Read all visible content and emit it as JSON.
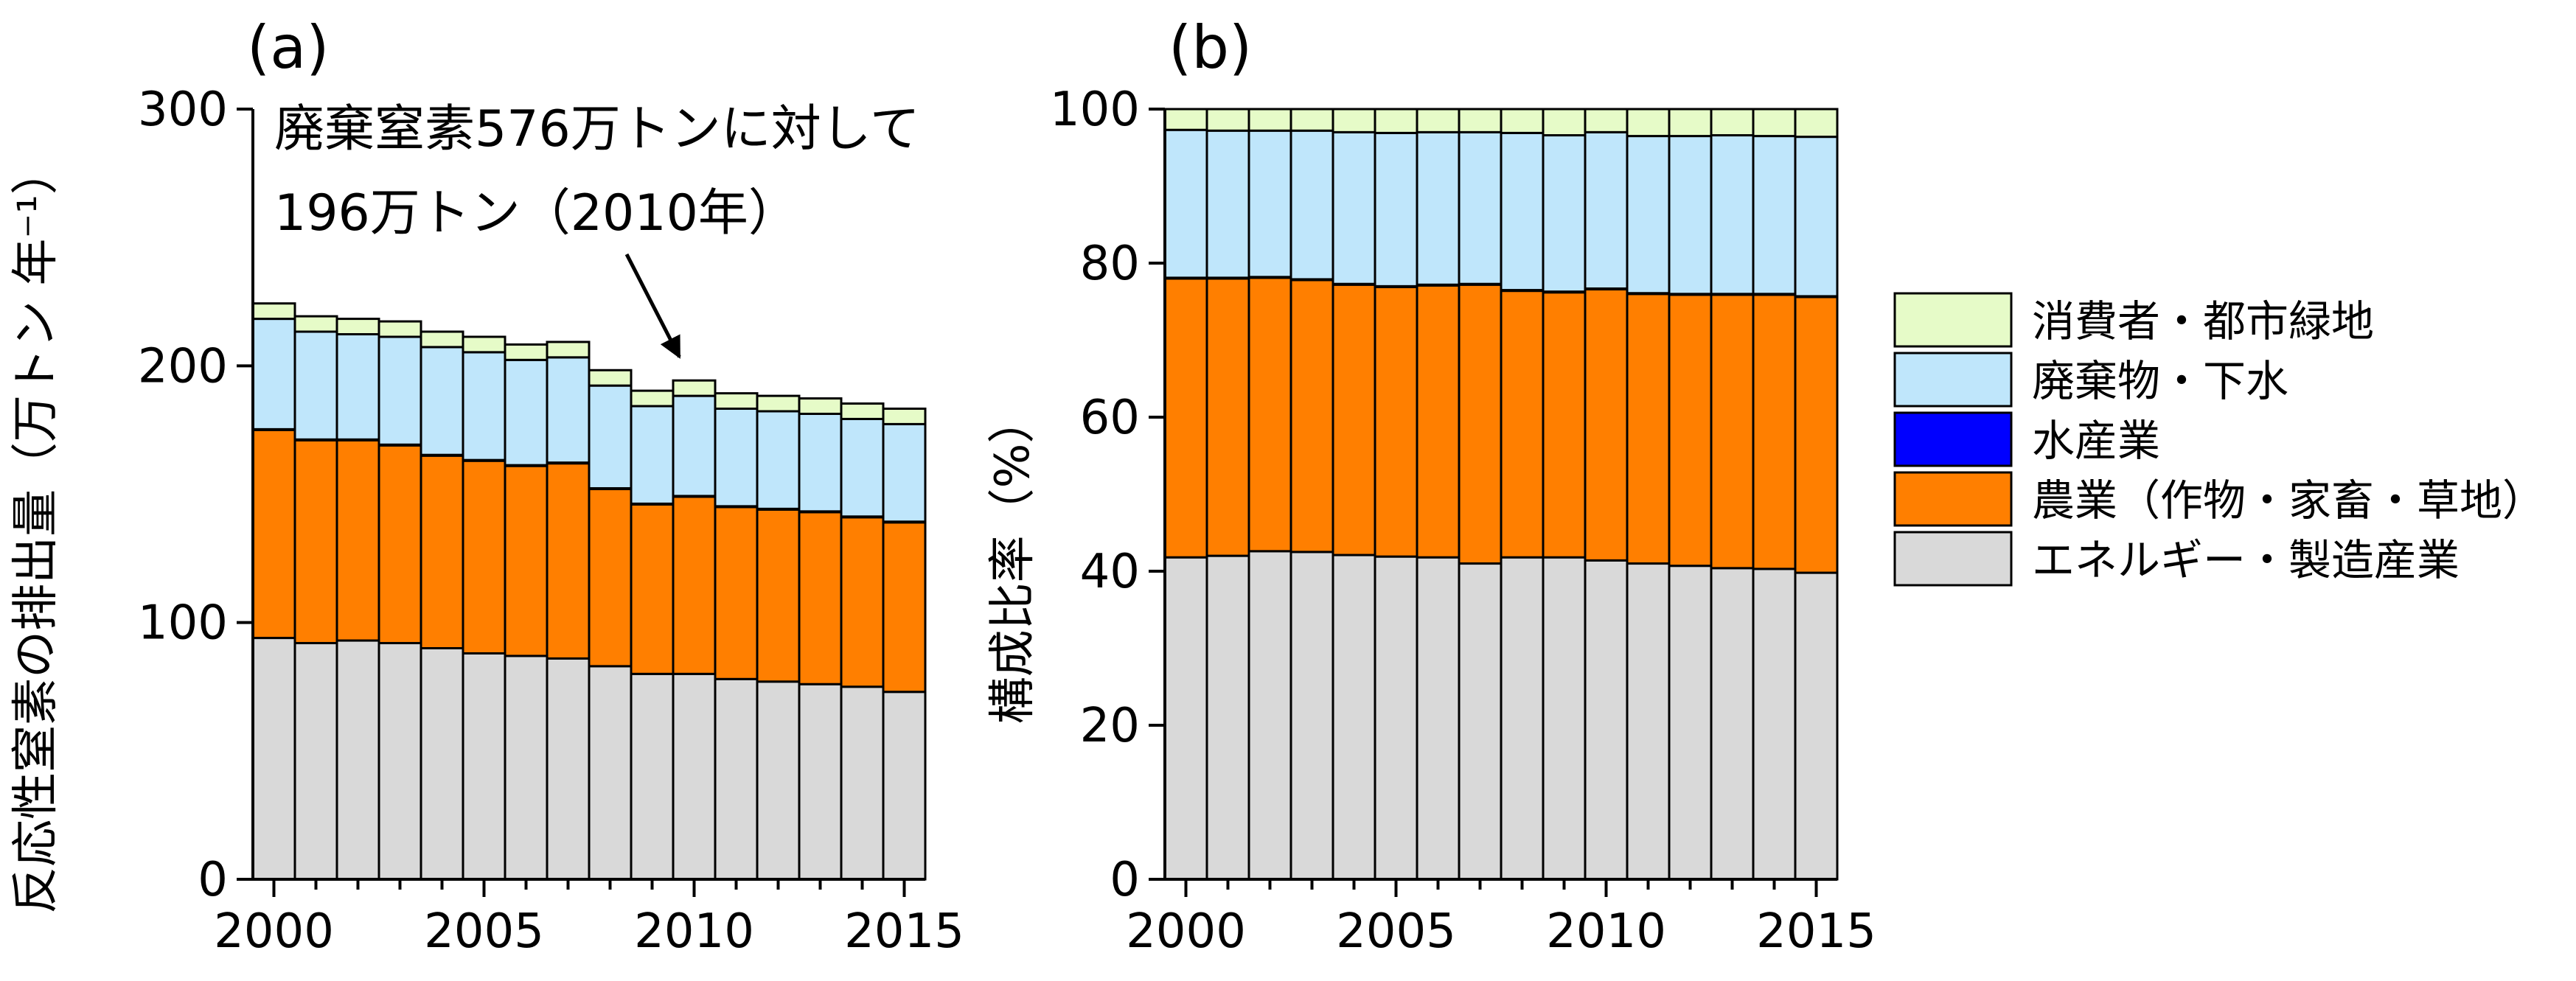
{
  "colors": {
    "consumer": "#e6fbc8",
    "waste": "#bfe6fb",
    "fishery": "#0000ff",
    "agriculture": "#ff7f00",
    "energy": "#d9d9d9",
    "edge": "#000000"
  },
  "chart_data": [
    {
      "type": "bar",
      "stacked": true,
      "panel_label": "(a)",
      "ylabel": "反応性窒素の排出量（万トン 年⁻¹）",
      "ylim": [
        0,
        300
      ],
      "yticks": [
        0,
        100,
        200,
        300
      ],
      "xticks": [
        "2000",
        "2005",
        "2010",
        "2015"
      ],
      "grid": false,
      "categories": [
        "2000",
        "2001",
        "2002",
        "2003",
        "2004",
        "2005",
        "2006",
        "2007",
        "2008",
        "2009",
        "2010",
        "2011",
        "2012",
        "2013",
        "2014",
        "2015"
      ],
      "series": [
        {
          "name": "エネルギー・製造産業",
          "color_key": "energy",
          "values": [
            94,
            92,
            93,
            92,
            90,
            88,
            87,
            86,
            83,
            80,
            80,
            78,
            77,
            76,
            75,
            73
          ]
        },
        {
          "name": "農業（作物・家畜・草地）",
          "color_key": "agriculture",
          "values": [
            81,
            79,
            78,
            77,
            75,
            75,
            74,
            76,
            69,
            66,
            69,
            67,
            67,
            67,
            66,
            66
          ]
        },
        {
          "name": "水産業",
          "color_key": "fishery",
          "values": [
            0.3,
            0.3,
            0.3,
            0.3,
            0.3,
            0.3,
            0.3,
            0.3,
            0.3,
            0.3,
            0.3,
            0.3,
            0.3,
            0.3,
            0.3,
            0.3
          ]
        },
        {
          "name": "廃棄物・下水",
          "color_key": "waste",
          "values": [
            43,
            42,
            41,
            42,
            42,
            42,
            41,
            41,
            40,
            38,
            39,
            38,
            38,
            38,
            38,
            38
          ]
        },
        {
          "name": "消費者・都市緑地",
          "color_key": "consumer",
          "values": [
            6,
            6,
            6,
            6,
            6,
            6,
            6,
            6,
            6,
            6,
            6,
            6,
            6,
            6,
            6,
            6
          ]
        }
      ],
      "annotation": {
        "lines": [
          "廃棄窒素576万トンに対して",
          "196万トン（2010年）"
        ],
        "arrow_target": {
          "x": "2010",
          "y": 196
        }
      }
    },
    {
      "type": "bar",
      "stacked": true,
      "panel_label": "(b)",
      "ylabel": "構成比率（%）",
      "ylim": [
        0,
        100
      ],
      "yticks": [
        0,
        20,
        40,
        60,
        80,
        100
      ],
      "xticks": [
        "2000",
        "2005",
        "2010",
        "2015"
      ],
      "grid": false,
      "categories": [
        "2000",
        "2001",
        "2002",
        "2003",
        "2004",
        "2005",
        "2006",
        "2007",
        "2008",
        "2009",
        "2010",
        "2011",
        "2012",
        "2013",
        "2014",
        "2015"
      ],
      "series": [
        {
          "name": "エネルギー・製造産業",
          "color_key": "energy",
          "values": [
            41.8,
            42.0,
            42.6,
            42.5,
            42.1,
            41.9,
            41.8,
            41.0,
            41.8,
            41.8,
            41.4,
            41.0,
            40.7,
            40.4,
            40.3,
            39.8
          ]
        },
        {
          "name": "農業（作物・家畜・草地）",
          "color_key": "agriculture",
          "values": [
            36.2,
            36.0,
            35.5,
            35.3,
            35.1,
            35.0,
            35.3,
            36.2,
            34.6,
            34.4,
            35.2,
            35.0,
            35.2,
            35.5,
            35.6,
            35.8
          ]
        },
        {
          "name": "水産業",
          "color_key": "fishery",
          "values": [
            0.1,
            0.1,
            0.1,
            0.1,
            0.1,
            0.1,
            0.1,
            0.1,
            0.1,
            0.1,
            0.1,
            0.1,
            0.1,
            0.1,
            0.1,
            0.1
          ]
        },
        {
          "name": "廃棄物・下水",
          "color_key": "waste",
          "values": [
            19.2,
            19.1,
            19.0,
            19.3,
            19.7,
            19.9,
            19.8,
            19.7,
            20.4,
            20.3,
            20.3,
            20.4,
            20.5,
            20.6,
            20.5,
            20.7
          ]
        },
        {
          "name": "消費者・都市緑地",
          "color_key": "consumer",
          "values": [
            2.7,
            2.8,
            2.8,
            2.8,
            3.0,
            3.1,
            3.0,
            3.0,
            3.1,
            3.4,
            3.0,
            3.5,
            3.5,
            3.4,
            3.5,
            3.6
          ]
        }
      ]
    }
  ],
  "legend": {
    "placement": "right",
    "items": [
      {
        "label": "消費者・都市緑地",
        "color_key": "consumer"
      },
      {
        "label": "廃棄物・下水",
        "color_key": "waste"
      },
      {
        "label": "水産業",
        "color_key": "fishery"
      },
      {
        "label": "農業（作物・家畜・草地）",
        "color_key": "agriculture"
      },
      {
        "label": "エネルギー・製造産業",
        "color_key": "energy"
      }
    ]
  }
}
